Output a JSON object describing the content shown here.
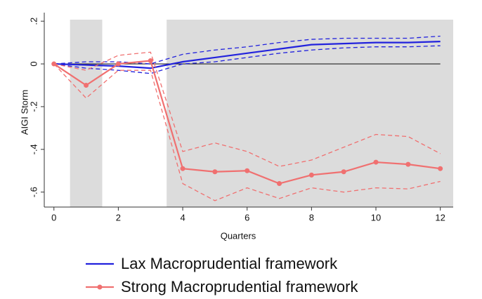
{
  "chart_data": {
    "type": "line",
    "x_label": "Quarters",
    "y_label": "AIGI Storm",
    "x": [
      0,
      1,
      2,
      3,
      4,
      5,
      6,
      7,
      8,
      9,
      10,
      11,
      12
    ],
    "series": [
      {
        "name": "Lax Macroprudential framework",
        "color": "#2222dd",
        "markers": false,
        "values": [
          0,
          -0.005,
          -0.01,
          -0.02,
          0.01,
          0.03,
          0.05,
          0.07,
          0.09,
          0.095,
          0.1,
          0.1,
          0.105
        ],
        "lower": [
          0,
          -0.02,
          -0.03,
          -0.045,
          0.0,
          0.01,
          0.03,
          0.05,
          0.065,
          0.075,
          0.08,
          0.08,
          0.085
        ],
        "upper": [
          0,
          0.01,
          0.01,
          0.0,
          0.045,
          0.065,
          0.08,
          0.1,
          0.115,
          0.12,
          0.12,
          0.12,
          0.13
        ]
      },
      {
        "name": "Strong Macroprudential framework",
        "color": "#f07070",
        "markers": true,
        "values": [
          0,
          -0.1,
          0.0,
          0.015,
          -0.49,
          -0.505,
          -0.5,
          -0.56,
          -0.52,
          -0.505,
          -0.46,
          -0.47,
          -0.49
        ],
        "lower": [
          0,
          -0.16,
          -0.03,
          -0.03,
          -0.56,
          -0.64,
          -0.58,
          -0.63,
          -0.58,
          -0.6,
          -0.58,
          -0.585,
          -0.55
        ],
        "upper": [
          0,
          -0.03,
          0.04,
          0.055,
          -0.41,
          -0.37,
          -0.41,
          -0.48,
          -0.45,
          -0.39,
          -0.33,
          -0.34,
          -0.42
        ]
      }
    ],
    "shaded_regions": [
      [
        0.5,
        1.5
      ],
      [
        3.5,
        12.4
      ]
    ],
    "reference_line": 0,
    "xlim": [
      -0.3,
      12.4
    ],
    "ylim": [
      -0.67,
      0.24
    ],
    "xticks": [
      0,
      2,
      4,
      6,
      8,
      10,
      12
    ],
    "yticks": [
      {
        "value": 0.2,
        "label": ".2"
      },
      0,
      {
        "value": -0.2,
        "label": "-.2"
      },
      {
        "value": -0.4,
        "label": "-.4"
      },
      {
        "value": -0.6,
        "label": "-.6"
      }
    ]
  }
}
